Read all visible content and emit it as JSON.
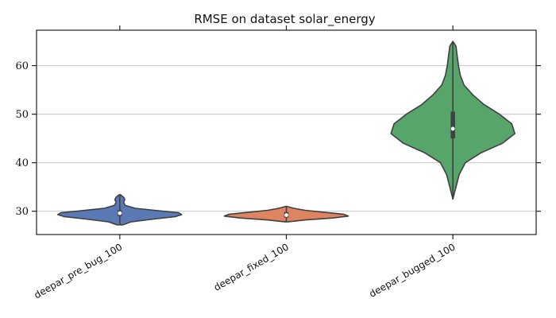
{
  "chart_data": {
    "type": "violin",
    "title": "RMSE on dataset solar_energy",
    "xlabel": "",
    "ylabel": "",
    "ylim": [
      25.2,
      67.3
    ],
    "yticks": [
      30,
      40,
      50,
      60
    ],
    "grid": "horizontal",
    "categories": [
      "deepar_pre_bug_100",
      "deepar_fixed_100",
      "deepar_bugged_100"
    ],
    "colors": [
      "#5a79b5",
      "#df8461",
      "#58a56b"
    ],
    "series": [
      {
        "min": 27.2,
        "q1": 29.0,
        "median": 29.6,
        "q3": 30.2,
        "max": 33.4,
        "density": [
          [
            27.2,
            0.05
          ],
          [
            27.8,
            0.18
          ],
          [
            28.4,
            0.55
          ],
          [
            28.9,
            0.9
          ],
          [
            29.3,
            1.0
          ],
          [
            29.7,
            0.95
          ],
          [
            30.1,
            0.62
          ],
          [
            30.6,
            0.25
          ],
          [
            31.2,
            0.09
          ],
          [
            31.8,
            0.06
          ],
          [
            32.4,
            0.08
          ],
          [
            32.9,
            0.06
          ],
          [
            33.4,
            0.01
          ]
        ]
      },
      {
        "min": 27.8,
        "q1": 28.7,
        "median": 29.2,
        "q3": 29.8,
        "max": 31.0,
        "density": [
          [
            27.8,
            0.02
          ],
          [
            28.2,
            0.3
          ],
          [
            28.6,
            0.75
          ],
          [
            29.0,
            1.0
          ],
          [
            29.4,
            0.92
          ],
          [
            29.8,
            0.6
          ],
          [
            30.2,
            0.3
          ],
          [
            30.6,
            0.12
          ],
          [
            31.0,
            0.01
          ]
        ]
      },
      {
        "min": 32.5,
        "q1": 45.0,
        "median": 47.0,
        "q3": 50.5,
        "max": 65.0,
        "density": [
          [
            32.5,
            0.0
          ],
          [
            35.0,
            0.05
          ],
          [
            37.5,
            0.1
          ],
          [
            40.0,
            0.2
          ],
          [
            42.0,
            0.45
          ],
          [
            44.0,
            0.8
          ],
          [
            46.0,
            1.0
          ],
          [
            48.0,
            0.95
          ],
          [
            50.0,
            0.75
          ],
          [
            52.0,
            0.5
          ],
          [
            54.0,
            0.32
          ],
          [
            56.0,
            0.18
          ],
          [
            58.0,
            0.12
          ],
          [
            60.0,
            0.09
          ],
          [
            62.0,
            0.07
          ],
          [
            64.0,
            0.05
          ],
          [
            65.0,
            0.0
          ]
        ]
      }
    ]
  }
}
